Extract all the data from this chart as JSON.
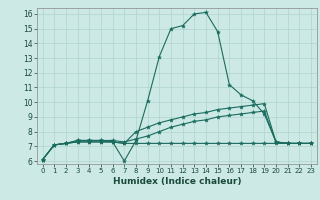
{
  "xlabel": "Humidex (Indice chaleur)",
  "bg_color": "#cce9e5",
  "line_color": "#1a6b5e",
  "grid_color": "#aed4cf",
  "xlim": [
    -0.5,
    23.5
  ],
  "ylim": [
    5.8,
    16.4
  ],
  "xticks": [
    0,
    1,
    2,
    3,
    4,
    5,
    6,
    7,
    8,
    9,
    10,
    11,
    12,
    13,
    14,
    15,
    16,
    17,
    18,
    19,
    20,
    21,
    22,
    23
  ],
  "yticks": [
    6,
    7,
    8,
    9,
    10,
    11,
    12,
    13,
    14,
    15,
    16
  ],
  "lines": [
    {
      "x": [
        0,
        1,
        2,
        3,
        4,
        5,
        6,
        7,
        8,
        9,
        10,
        11,
        12,
        13,
        14,
        15,
        16,
        17,
        18,
        19,
        20,
        21,
        22,
        23
      ],
      "y": [
        6.1,
        7.1,
        7.2,
        7.3,
        7.3,
        7.3,
        7.3,
        6.0,
        7.4,
        10.1,
        13.1,
        15.0,
        15.2,
        16.0,
        16.1,
        14.8,
        11.2,
        10.5,
        10.1,
        9.2,
        7.3,
        7.2,
        7.2,
        7.2
      ]
    },
    {
      "x": [
        0,
        1,
        2,
        3,
        4,
        5,
        6,
        7,
        8,
        9,
        10,
        11,
        12,
        13,
        14,
        15,
        16,
        17,
        18,
        19,
        20,
        21,
        22,
        23
      ],
      "y": [
        6.1,
        7.1,
        7.2,
        7.4,
        7.4,
        7.4,
        7.3,
        7.2,
        8.0,
        8.3,
        8.6,
        8.8,
        9.0,
        9.2,
        9.3,
        9.5,
        9.6,
        9.7,
        9.8,
        9.9,
        7.3,
        7.2,
        7.2,
        7.2
      ]
    },
    {
      "x": [
        0,
        1,
        2,
        3,
        4,
        5,
        6,
        7,
        8,
        9,
        10,
        11,
        12,
        13,
        14,
        15,
        16,
        17,
        18,
        19,
        20,
        21,
        22,
        23
      ],
      "y": [
        6.1,
        7.1,
        7.2,
        7.4,
        7.4,
        7.4,
        7.4,
        7.3,
        7.5,
        7.7,
        8.0,
        8.3,
        8.5,
        8.7,
        8.8,
        9.0,
        9.1,
        9.2,
        9.3,
        9.4,
        7.3,
        7.2,
        7.2,
        7.2
      ]
    },
    {
      "x": [
        0,
        1,
        2,
        3,
        4,
        5,
        6,
        7,
        8,
        9,
        10,
        11,
        12,
        13,
        14,
        15,
        16,
        17,
        18,
        19,
        20,
        21,
        22,
        23
      ],
      "y": [
        6.1,
        7.1,
        7.2,
        7.3,
        7.3,
        7.3,
        7.3,
        7.2,
        7.2,
        7.2,
        7.2,
        7.2,
        7.2,
        7.2,
        7.2,
        7.2,
        7.2,
        7.2,
        7.2,
        7.2,
        7.2,
        7.2,
        7.2,
        7.2
      ]
    }
  ]
}
